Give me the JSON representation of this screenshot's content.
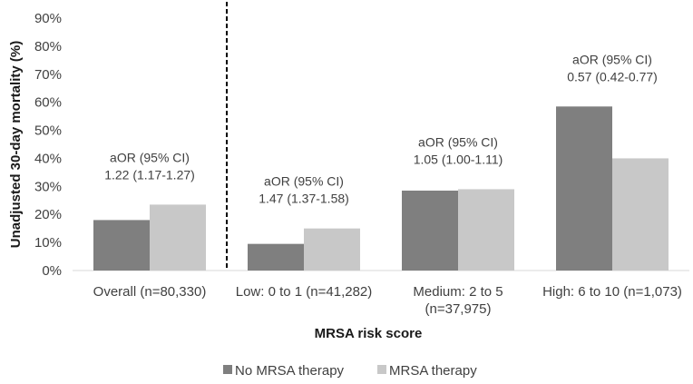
{
  "chart_data": {
    "type": "bar",
    "categories": [
      [
        "Overall (n=80,330)"
      ],
      [
        "Low: 0 to 1 (n=41,282)"
      ],
      [
        "Medium: 2 to 5",
        "(n=37,975)"
      ],
      [
        "High: 6 to 10 (n=1,073)"
      ]
    ],
    "series": [
      {
        "name": "No MRSA therapy",
        "values": [
          18,
          9.5,
          28.5,
          58.5
        ],
        "color": "#7f7f7f"
      },
      {
        "name": "MRSA therapy",
        "values": [
          23.5,
          15,
          29,
          40
        ],
        "color": "#c8c8c8"
      }
    ],
    "annotations": [
      {
        "line1": "aOR (95% CI)",
        "line2": "1.22 (1.17-1.27)"
      },
      {
        "line1": "aOR (95% CI)",
        "line2": "1.47 (1.37-1.58)"
      },
      {
        "line1": "aOR (95% CI)",
        "line2": "1.05 (1.00-1.11)"
      },
      {
        "line1": "aOR (95% CI)",
        "line2": "0.57 (0.42-0.77)"
      }
    ],
    "xlabel": "MRSA risk score",
    "ylabel": "Unadjusted 30-day mortality (%)",
    "ylim": [
      0,
      90
    ],
    "yticks": [
      0,
      10,
      20,
      30,
      40,
      50,
      60,
      70,
      80,
      90
    ],
    "ytick_suffix": "%",
    "divider_after_category": 0,
    "legend_position": "bottom",
    "grid": false
  }
}
